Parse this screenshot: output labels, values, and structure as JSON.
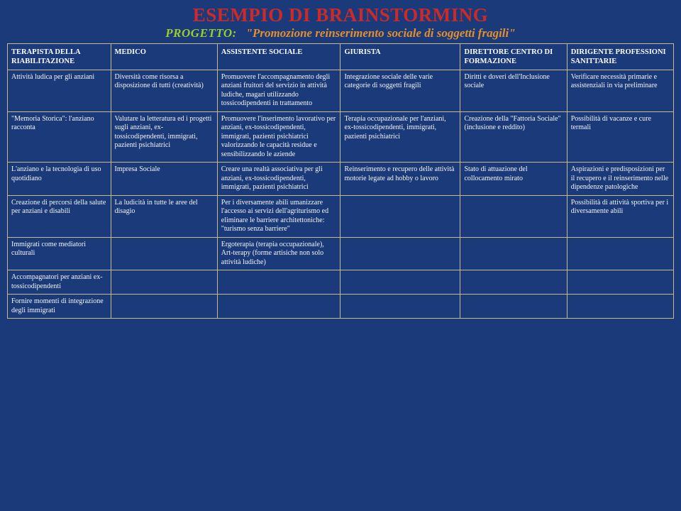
{
  "header": {
    "title": "ESEMPIO DI BRAINSTORMING",
    "project_label": "PROGETTO:",
    "project_value": "\"Promozione reinserimento sociale di soggetti fragili\""
  },
  "columns": [
    "TERAPISTA DELLA RIABILITAZIONE",
    "MEDICO",
    "ASSISTENTE SOCIALE",
    "GIURISTA",
    "DIRETTORE CENTRO DI  FORMAZIONE",
    "DIRIGENTE PROFESSIONI SANITTARIE"
  ],
  "rows": [
    [
      "Attività ludica per gli anziani",
      "Diversità come risorsa a disposizione di tutti (creatività)",
      "Promuovere l'accompagnamento degli anziani fruitori del servizio in attività ludiche, magari utilizzando tossicodipendenti in trattamento",
      "Integrazione sociale delle varie categorie di soggetti fragili",
      "Diritti e doveri dell'Inclusione sociale",
      "Verificare necessità primarie e assistenziali in via preliminare"
    ],
    [
      "\"Memoria Storica\": l'anziano racconta",
      "Valutare la letteratura ed i progetti sugli anziani, ex-tossicodipendenti, immigrati, pazienti psichiatrici",
      "Promuovere l'inserimento lavorativo per anziani, ex-tossicodipendenti, immigrati, pazienti psichiatrici valorizzando le capacità residue e sensibilizzando le aziende",
      "Terapia occupazionale per l'anziani, ex-tossicodipendenti, immigrati, pazienti psichiatrici",
      "Creazione della \"Fattoria Sociale\" (inclusione e reddito)",
      "Possibilità di vacanze e cure termali"
    ],
    [
      "L'anziano e la tecnologia di uso quotidiano",
      "Impresa Sociale",
      "Creare una realtà associativa per gli anziani, ex-tossicodipendenti, immigrati, pazienti psichiatrici",
      "Reinserimento e recupero delle attività motorie legate ad hobby o lavoro",
      "Stato di attuazione del collocamento mirato",
      "Aspirazioni e predisposizioni per il recupero e il reinserimento nelle dipendenze patologiche"
    ],
    [
      "Creazione di percorsi della salute per anziani e disabili",
      "La ludicità in tutte le aree del disagio",
      "Per i diversamente abili umanizzare l'accesso ai servizi dell'agriturismo ed eliminare le barriere architettoniche: \"turismo senza barriere\"",
      "",
      "",
      "Possibilità di attività sportiva per i diversamente abili"
    ],
    [
      "Immigrati come mediatori culturali",
      "",
      "Ergoterapia (terapia occupazionale), Art-terapy (forme artisiche non solo attività ludiche)",
      "",
      "",
      ""
    ],
    [
      "Accompagnatori per anziani ex-tossicodipendenti",
      "",
      "",
      "",
      "",
      ""
    ],
    [
      "Fornire momenti di integrazione degli immigrati",
      "",
      "",
      "",
      "",
      ""
    ]
  ],
  "style": {
    "bg": "#1a3a7a",
    "title_color": "#cc2a2a",
    "project_label_color": "#9acd32",
    "project_value_color": "#e38f2f",
    "border_color": "#c9b98a",
    "text_color": "#ffffff",
    "title_fontsize": 27,
    "header_fontsize": 10.5,
    "cell_fontsize": 10,
    "col_widths_pct": [
      15.5,
      16,
      18.5,
      18,
      16,
      16
    ]
  }
}
